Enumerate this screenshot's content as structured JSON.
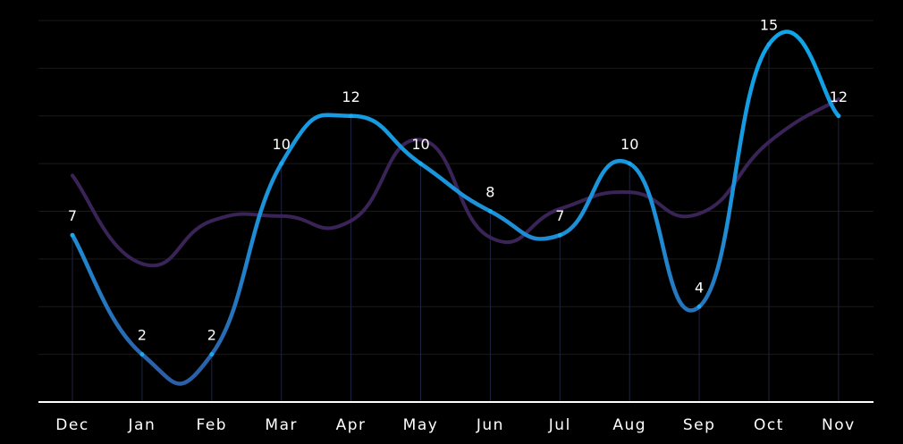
{
  "chart_data": {
    "type": "line",
    "categories": [
      "Dec",
      "Jan",
      "Feb",
      "Mar",
      "Apr",
      "May",
      "Jun",
      "Jul",
      "Aug",
      "Sep",
      "Oct",
      "Nov"
    ],
    "series": [
      {
        "values": [
          7,
          2,
          2,
          10,
          12,
          10,
          8,
          7,
          10,
          4,
          15,
          12
        ],
        "data_labels": [
          "7",
          "2",
          "2",
          "10",
          "12",
          "10",
          "8",
          "7",
          "10",
          "4",
          "15",
          "12"
        ],
        "color_start": "#0ea5e9",
        "color_end": "#2b5fa8"
      },
      {
        "values": [
          9.5,
          5.8,
          7.6,
          7.8,
          7.6,
          11,
          6.9,
          8.1,
          8.8,
          7.9,
          10.9,
          12.7
        ],
        "color": "#3a2356"
      }
    ],
    "ylim": [
      0,
      16
    ],
    "grid": true,
    "legend": "none",
    "colors": {
      "background": "#000000",
      "grid": "#1a1a1a",
      "axis": "#ffffff",
      "text": "#ffffff",
      "vertical_guides": "#1f2340"
    }
  }
}
